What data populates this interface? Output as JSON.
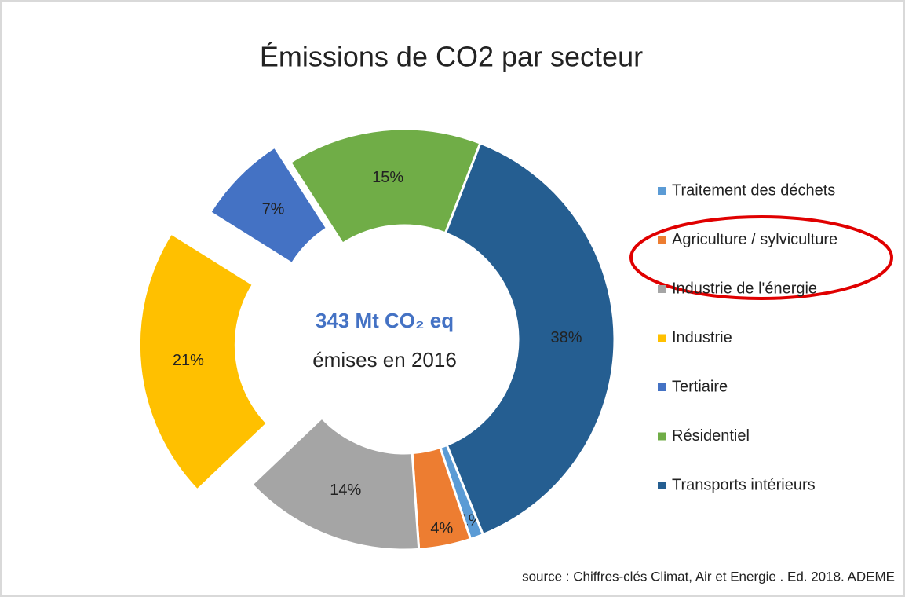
{
  "chart_data": {
    "type": "donut",
    "title": "Émissions de CO2 par secteur",
    "center_label": "343 Mt CO₂ eq",
    "center_sublabel": "émises en 2016",
    "source": "source : Chiffres-clés Climat, Air et Energie . Ed. 2018. ADEME",
    "categories": [
      "Traitement des déchets",
      "Agriculture / sylviculture",
      "Industrie de l'énergie",
      "Industrie",
      "Tertiaire",
      "Résidentiel",
      "Transports intérieurs"
    ],
    "values": [
      1,
      4,
      14,
      21,
      7,
      15,
      38
    ],
    "value_labels": [
      "1%",
      "4%",
      "14%",
      "21%",
      "7%",
      "15%",
      "38%"
    ],
    "colors": [
      "#5b9bd5",
      "#ed7d31",
      "#a5a5a5",
      "#ffc000",
      "#4472c4",
      "#70ad47",
      "#255e91"
    ],
    "legend": "right"
  }
}
